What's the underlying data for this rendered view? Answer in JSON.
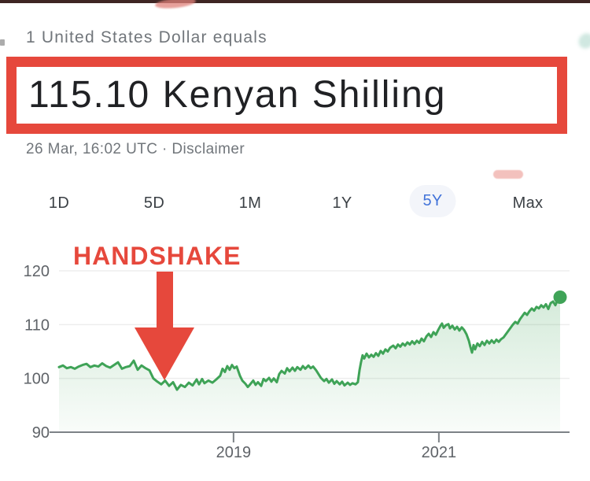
{
  "colors": {
    "annotation_red": "#e6483c",
    "tab_selected_blue": "#4273d9",
    "line_green": "#3fa357",
    "top_bar": "#3e2523",
    "axis_gray": "#7d8287",
    "label_gray": "#5f6368",
    "text_dark": "#202124",
    "muted_gray": "#71767b"
  },
  "header": {
    "subtitle": "1 United States Dollar equals",
    "rate": "115.10 Kenyan Shilling",
    "timestamp": "26 Mar, 16:02 UTC · ",
    "disclaimer": "Disclaimer"
  },
  "annotation": {
    "label": "HANDSHAKE"
  },
  "tabs": [
    {
      "label": "1D",
      "selected": false
    },
    {
      "label": "5D",
      "selected": false
    },
    {
      "label": "1M",
      "selected": false
    },
    {
      "label": "1Y",
      "selected": false
    },
    {
      "label": "5Y",
      "selected": true
    },
    {
      "label": "Max",
      "selected": false
    }
  ],
  "chart_data": {
    "type": "area",
    "description": "USD to KES exchange rate over 5Y range",
    "x_domain": [
      2017.3,
      2022.181
    ],
    "ylim": [
      90,
      124
    ],
    "grid": true,
    "y_ticks": [
      {
        "label": "90",
        "value": 90
      },
      {
        "label": "100",
        "value": 100
      },
      {
        "label": "110",
        "value": 110
      },
      {
        "label": "120",
        "value": 120
      }
    ],
    "x_ticks": [
      {
        "label": "2019",
        "year": 2019
      },
      {
        "label": "2021",
        "year": 2021
      }
    ],
    "endpoint": {
      "year": 2022.181,
      "value": 115.1
    },
    "series": [
      {
        "name": "USD/KES",
        "points": [
          [
            2017.3,
            102.1
          ],
          [
            2017.338,
            102.4
          ],
          [
            2017.377,
            101.9
          ],
          [
            2017.415,
            102.1
          ],
          [
            2017.453,
            101.8
          ],
          [
            2017.492,
            102.2
          ],
          [
            2017.53,
            102.5
          ],
          [
            2017.568,
            102.7
          ],
          [
            2017.606,
            102.1
          ],
          [
            2017.645,
            102.4
          ],
          [
            2017.683,
            102.2
          ],
          [
            2017.721,
            102.8
          ],
          [
            2017.76,
            102.3
          ],
          [
            2017.798,
            102.0
          ],
          [
            2017.836,
            102.5
          ],
          [
            2017.875,
            103.0
          ],
          [
            2017.913,
            101.8
          ],
          [
            2017.951,
            102.1
          ],
          [
            2017.99,
            102.3
          ],
          [
            2018.028,
            103.3
          ],
          [
            2018.066,
            101.6
          ],
          [
            2018.104,
            102.4
          ],
          [
            2018.143,
            101.9
          ],
          [
            2018.181,
            101.5
          ],
          [
            2018.219,
            100.0
          ],
          [
            2018.258,
            99.4
          ],
          [
            2018.296,
            98.9
          ],
          [
            2018.334,
            99.6
          ],
          [
            2018.373,
            98.6
          ],
          [
            2018.411,
            99.3
          ],
          [
            2018.449,
            97.9
          ],
          [
            2018.487,
            98.8
          ],
          [
            2018.526,
            98.4
          ],
          [
            2018.564,
            99.2
          ],
          [
            2018.602,
            98.7
          ],
          [
            2018.641,
            99.8
          ],
          [
            2018.664,
            98.9
          ],
          [
            2018.694,
            99.9
          ],
          [
            2018.717,
            99.1
          ],
          [
            2018.756,
            99.6
          ],
          [
            2018.794,
            99.2
          ],
          [
            2018.832,
            99.8
          ],
          [
            2018.87,
            100.5
          ],
          [
            2018.893,
            101.8
          ],
          [
            2018.916,
            101.2
          ],
          [
            2018.939,
            102.3
          ],
          [
            2018.962,
            101.6
          ],
          [
            2018.985,
            102.5
          ],
          [
            2019.008,
            101.9
          ],
          [
            2019.031,
            102.2
          ],
          [
            2019.062,
            100.5
          ],
          [
            2019.085,
            99.6
          ],
          [
            2019.116,
            99.0
          ],
          [
            2019.139,
            98.4
          ],
          [
            2019.162,
            98.9
          ],
          [
            2019.192,
            99.6
          ],
          [
            2019.215,
            98.8
          ],
          [
            2019.238,
            99.3
          ],
          [
            2019.269,
            98.6
          ],
          [
            2019.292,
            99.9
          ],
          [
            2019.315,
            99.5
          ],
          [
            2019.346,
            100.1
          ],
          [
            2019.369,
            99.4
          ],
          [
            2019.392,
            100.0
          ],
          [
            2019.422,
            99.3
          ],
          [
            2019.445,
            100.8
          ],
          [
            2019.468,
            101.4
          ],
          [
            2019.499,
            100.9
          ],
          [
            2019.522,
            101.9
          ],
          [
            2019.545,
            101.3
          ],
          [
            2019.575,
            102.0
          ],
          [
            2019.598,
            101.4
          ],
          [
            2019.621,
            102.1
          ],
          [
            2019.652,
            101.6
          ],
          [
            2019.675,
            102.3
          ],
          [
            2019.698,
            101.8
          ],
          [
            2019.729,
            102.4
          ],
          [
            2019.752,
            101.9
          ],
          [
            2019.775,
            102.2
          ],
          [
            2019.805,
            101.5
          ],
          [
            2019.828,
            100.8
          ],
          [
            2019.851,
            100.1
          ],
          [
            2019.882,
            99.5
          ],
          [
            2019.905,
            99.9
          ],
          [
            2019.928,
            99.2
          ],
          [
            2019.959,
            99.8
          ],
          [
            2019.982,
            99.0
          ],
          [
            2020.005,
            99.5
          ],
          [
            2020.035,
            98.9
          ],
          [
            2020.058,
            99.4
          ],
          [
            2020.081,
            98.7
          ],
          [
            2020.112,
            99.2
          ],
          [
            2020.135,
            98.8
          ],
          [
            2020.158,
            99.1
          ],
          [
            2020.188,
            98.9
          ],
          [
            2020.211,
            99.3
          ],
          [
            2020.227,
            101.5
          ],
          [
            2020.242,
            103.0
          ],
          [
            2020.257,
            104.3
          ],
          [
            2020.273,
            103.7
          ],
          [
            2020.296,
            104.6
          ],
          [
            2020.319,
            103.9
          ],
          [
            2020.342,
            104.4
          ],
          [
            2020.364,
            104.0
          ],
          [
            2020.387,
            104.7
          ],
          [
            2020.41,
            104.2
          ],
          [
            2020.433,
            105.1
          ],
          [
            2020.456,
            104.6
          ],
          [
            2020.479,
            105.4
          ],
          [
            2020.502,
            105.0
          ],
          [
            2020.525,
            105.7
          ],
          [
            2020.556,
            106.1
          ],
          [
            2020.579,
            105.6
          ],
          [
            2020.602,
            106.3
          ],
          [
            2020.625,
            105.9
          ],
          [
            2020.648,
            106.5
          ],
          [
            2020.671,
            106.1
          ],
          [
            2020.694,
            106.7
          ],
          [
            2020.717,
            106.3
          ],
          [
            2020.74,
            106.9
          ],
          [
            2020.763,
            106.4
          ],
          [
            2020.786,
            107.0
          ],
          [
            2020.809,
            106.6
          ],
          [
            2020.832,
            107.4
          ],
          [
            2020.855,
            106.9
          ],
          [
            2020.878,
            107.8
          ],
          [
            2020.901,
            108.3
          ],
          [
            2020.924,
            107.7
          ],
          [
            2020.947,
            108.6
          ],
          [
            2020.97,
            108.1
          ],
          [
            2020.993,
            109.0
          ],
          [
            2021.016,
            109.8
          ],
          [
            2021.031,
            110.2
          ],
          [
            2021.047,
            109.4
          ],
          [
            2021.07,
            109.9
          ],
          [
            2021.093,
            110.1
          ],
          [
            2021.108,
            109.3
          ],
          [
            2021.131,
            109.8
          ],
          [
            2021.154,
            109.1
          ],
          [
            2021.177,
            109.6
          ],
          [
            2021.2,
            108.9
          ],
          [
            2021.223,
            109.5
          ],
          [
            2021.246,
            109.0
          ],
          [
            2021.269,
            108.2
          ],
          [
            2021.292,
            107.0
          ],
          [
            2021.307,
            105.9
          ],
          [
            2021.323,
            104.8
          ],
          [
            2021.338,
            106.2
          ],
          [
            2021.353,
            105.4
          ],
          [
            2021.376,
            106.5
          ],
          [
            2021.399,
            106.0
          ],
          [
            2021.422,
            106.8
          ],
          [
            2021.445,
            106.2
          ],
          [
            2021.468,
            107.0
          ],
          [
            2021.491,
            106.5
          ],
          [
            2021.514,
            107.1
          ],
          [
            2021.537,
            106.6
          ],
          [
            2021.56,
            107.2
          ],
          [
            2021.583,
            106.8
          ],
          [
            2021.606,
            107.3
          ],
          [
            2021.629,
            107.6
          ],
          [
            2021.652,
            108.2
          ],
          [
            2021.675,
            108.8
          ],
          [
            2021.698,
            109.4
          ],
          [
            2021.721,
            110.0
          ],
          [
            2021.744,
            110.5
          ],
          [
            2021.767,
            110.2
          ],
          [
            2021.79,
            111.0
          ],
          [
            2021.813,
            111.6
          ],
          [
            2021.836,
            112.2
          ],
          [
            2021.859,
            111.8
          ],
          [
            2021.882,
            112.5
          ],
          [
            2021.905,
            113.0
          ],
          [
            2021.928,
            112.6
          ],
          [
            2021.951,
            113.3
          ],
          [
            2021.974,
            113.0
          ],
          [
            2021.997,
            113.6
          ],
          [
            2022.02,
            113.2
          ],
          [
            2022.043,
            113.8
          ],
          [
            2022.066,
            112.9
          ],
          [
            2022.089,
            114.0
          ],
          [
            2022.112,
            114.3
          ],
          [
            2022.135,
            113.6
          ],
          [
            2022.158,
            114.7
          ],
          [
            2022.181,
            115.1
          ]
        ]
      }
    ]
  }
}
